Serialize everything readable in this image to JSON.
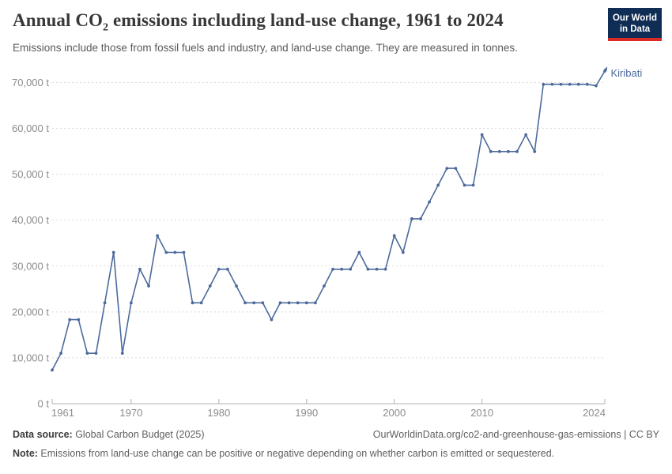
{
  "header": {
    "title_prefix": "Annual CO",
    "title_sub": "2",
    "title_suffix": " emissions including land-use change, 1961 to 2024",
    "subtitle": "Emissions include those from fossil fuels and industry, and land-use change. They are measured in tonnes.",
    "logo": {
      "line1": "Our World",
      "line2": "in Data"
    }
  },
  "chart_data": {
    "type": "line",
    "title": "Annual CO₂ emissions including land-use change, 1961 to 2024",
    "entity": "Kiribati",
    "unit": "t",
    "xlim": [
      1961,
      2024
    ],
    "ylim": [
      0,
      70000
    ],
    "grid": "horizontal-dashed",
    "legend_position": "end-of-line-label",
    "x": [
      1961,
      1962,
      1963,
      1964,
      1965,
      1966,
      1967,
      1968,
      1969,
      1970,
      1971,
      1972,
      1973,
      1974,
      1975,
      1976,
      1977,
      1978,
      1979,
      1980,
      1981,
      1982,
      1983,
      1984,
      1985,
      1986,
      1987,
      1988,
      1989,
      1990,
      1991,
      1992,
      1993,
      1994,
      1995,
      1996,
      1997,
      1998,
      1999,
      2000,
      2001,
      2002,
      2003,
      2004,
      2005,
      2006,
      2007,
      2008,
      2009,
      2010,
      2011,
      2012,
      2013,
      2014,
      2015,
      2016,
      2017,
      2018,
      2019,
      2020,
      2021,
      2022,
      2023,
      2024
    ],
    "series": [
      {
        "name": "Kiribati",
        "values": [
          7328,
          10992,
          18321,
          18321,
          10992,
          10992,
          21985,
          32977,
          10992,
          21985,
          29313,
          25649,
          36641,
          32977,
          32977,
          32977,
          21985,
          21985,
          25649,
          29313,
          29313,
          25649,
          21985,
          21985,
          21985,
          18321,
          21985,
          21985,
          21985,
          21985,
          21985,
          25649,
          29313,
          29313,
          29313,
          32977,
          29313,
          29313,
          29313,
          36641,
          32977,
          40305,
          40305,
          43969,
          47633,
          51297,
          51297,
          47633,
          47633,
          58626,
          54962,
          54962,
          54962,
          54962,
          58626,
          54962,
          69616,
          69616,
          69616,
          69616,
          69616,
          69616,
          69300,
          72500
        ]
      }
    ],
    "xticks": [
      "1961",
      "1970",
      "1980",
      "1990",
      "2000",
      "2010",
      "2024"
    ],
    "xtick_years": [
      1961,
      1970,
      1980,
      1990,
      2000,
      2010,
      2024
    ],
    "yticks": [
      0,
      10000,
      20000,
      30000,
      40000,
      50000,
      60000,
      70000
    ],
    "ytick_labels": [
      "0 t",
      "10,000 t",
      "20,000 t",
      "30,000 t",
      "40,000 t",
      "50,000 t",
      "60,000 t",
      "70,000 t"
    ],
    "colors": {
      "line": "#4c6a9c",
      "series_label": "#4c6a9c",
      "grid": "#dadada",
      "axis": "#b0b0b0",
      "tick_text": "#8c8c8c"
    }
  },
  "footer": {
    "source_label": "Data source:",
    "source_value": " Global Carbon Budget (2025)",
    "link": "OurWorldinData.org/co2-and-greenhouse-gas-emissions | CC BY",
    "note_label": "Note:",
    "note_text": " Emissions from land-use change can be positive or negative depending on whether carbon is emitted or sequestered."
  }
}
